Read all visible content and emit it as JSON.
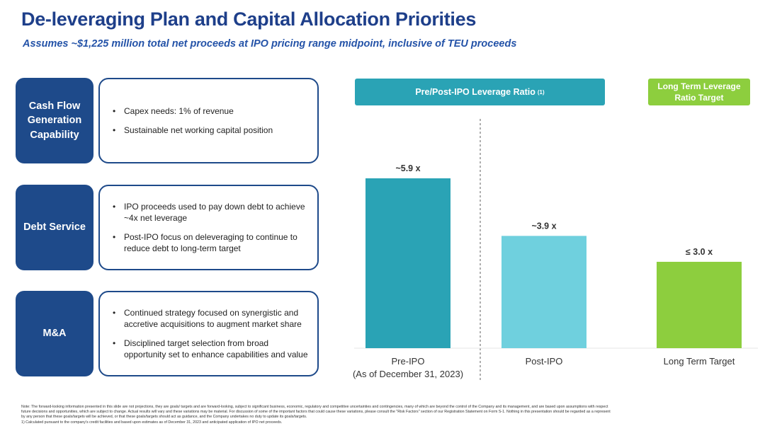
{
  "title": "De-leveraging Plan and Capital Allocation Priorities",
  "subtitle": "Assumes ~$1,225 million total net proceeds at IPO pricing range midpoint, inclusive of TEU proceeds",
  "rows": [
    {
      "label": "Cash Flow Generation Capability",
      "bullets": [
        "Capex needs: 1% of revenue",
        "Sustainable net working capital position"
      ]
    },
    {
      "label": "Debt Service",
      "bullets": [
        "IPO proceeds used to pay down debt to achieve ~4x net leverage",
        "Post-IPO focus on deleveraging to continue to reduce debt to long-term target"
      ]
    },
    {
      "label": "M&A",
      "bullets": [
        "Continued strategy focused on synergistic and accretive acquisitions to augment market share",
        "Disciplined target selection from broad opportunity set to enhance capabilities and value"
      ]
    }
  ],
  "headers": {
    "leverage": "Pre/Post-IPO Leverage Ratio",
    "leverage_note": "(1)",
    "long_term": "Long Term Leverage Ratio Target"
  },
  "chart_data": {
    "type": "bar",
    "categories": [
      "Pre-IPO (As of December 31, 2023)",
      "Post-IPO",
      "Long Term Target"
    ],
    "category_lines": [
      [
        "Pre-IPO",
        "(As of December 31, 2023)"
      ],
      [
        "Post-IPO"
      ],
      [
        "Long Term Target"
      ]
    ],
    "values": [
      5.9,
      3.9,
      3.0
    ],
    "data_labels": [
      "~5.9 x",
      "~3.9 x",
      "≤ 3.0 x"
    ],
    "colors": [
      "#2aa3b5",
      "#6fd0de",
      "#8dce3e"
    ],
    "ylim": [
      0,
      5.9
    ],
    "xlabel": "",
    "ylabel": "",
    "grid": false
  },
  "footnote": {
    "lines": [
      "Note: The forward-looking information presented in this slide are not projections, they are goals/ targets and are forward-looking, subject to significant business, economic, regulatory and competitive uncertainties and contingencies, many of which are beyond the control of the Company and its management, and are based upon assumptions with respect",
      "future decisions and opportunities, which are subject to change. Actual results will vary and these variations may be material. For discussion of some of the important factors that could cause these variations, please consult the \"Risk Factors\" section of our Registration Statement on Form S-1. Nothing in this presentation should be regarded as a represent",
      "by any person that these goals/targets will be achieved, or that these goals/targets should act as guidance, and the Company undertakes no duty to update its goals/targets.",
      "1)        Calculated pursuant to the company's credit facilities and based upon estimates as of December 31, 2023 and anticipated application of IPO net proceeds."
    ]
  }
}
